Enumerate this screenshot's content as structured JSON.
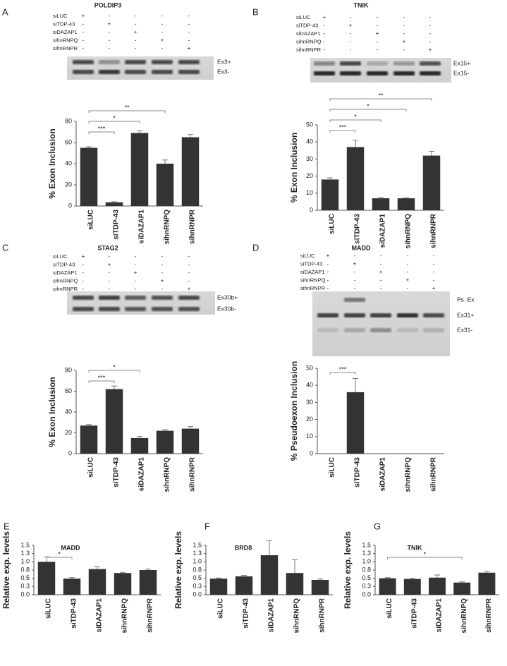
{
  "chart_data": [
    {
      "type": "bar",
      "panel": "A",
      "title": "POLDIP3",
      "gel": {
        "row_labels": [
          "siLUC",
          "siTDP-43",
          "siDAZAP1",
          "sihnRNPQ",
          "sihnRNPR"
        ],
        "rows": [
          [
            "+",
            "-",
            "-",
            "-",
            "-"
          ],
          [
            "-",
            "+",
            "-",
            "-",
            "-"
          ],
          [
            "-",
            "-",
            "+",
            "-",
            "-"
          ],
          [
            "-",
            "-",
            "-",
            "+",
            "-"
          ],
          [
            "-",
            "-",
            "-",
            "-",
            "+"
          ]
        ],
        "bands": [
          "Ex3+",
          "Ex3-"
        ]
      },
      "categories": [
        "siLUC",
        "siTDP-43",
        "siDAZAP1",
        "sihnRNPQ",
        "sihnRNPR"
      ],
      "values": [
        55,
        3.5,
        69,
        40,
        65
      ],
      "errors": [
        1,
        0.5,
        2,
        3.5,
        2.5
      ],
      "color": "#333333",
      "ylabel": "% Exon Inclusion",
      "ylim": [
        0,
        80
      ],
      "yticks": [
        0,
        20,
        40,
        60,
        80
      ],
      "significance": [
        {
          "label": "***",
          "between": [
            "siLUC",
            "siTDP-43"
          ]
        },
        {
          "label": "*",
          "between": [
            "siLUC",
            "siDAZAP1"
          ]
        },
        {
          "label": "**",
          "between": [
            "siLUC",
            "sihnRNPQ"
          ]
        }
      ]
    },
    {
      "type": "bar",
      "panel": "B",
      "title": "TNIK",
      "gel": {
        "row_labels": [
          "siLUC",
          "siTDP-43",
          "siDAZAP1",
          "sihnRNPQ",
          "sihnRNPR"
        ],
        "rows": [
          [
            "+",
            "-",
            "-",
            "-",
            "-"
          ],
          [
            "-",
            "+",
            "-",
            "-",
            "-"
          ],
          [
            "-",
            "-",
            "+",
            "-",
            "-"
          ],
          [
            "-",
            "-",
            "-",
            "+",
            "-"
          ],
          [
            "-",
            "-",
            "-",
            "-",
            "+"
          ]
        ],
        "bands": [
          "Ex15+",
          "Ex15-"
        ]
      },
      "categories": [
        "siLUC",
        "siTDP-43",
        "siDAZAP1",
        "sihnRNPQ",
        "sihnRNPR"
      ],
      "values": [
        18,
        37,
        7,
        7,
        32
      ],
      "errors": [
        1,
        4,
        0.5,
        0.3,
        2.5
      ],
      "color": "#333333",
      "ylabel": "% Exon Inclusion",
      "ylim": [
        0,
        50
      ],
      "yticks": [
        0,
        10,
        20,
        30,
        40,
        50
      ],
      "significance": [
        {
          "label": "***",
          "between": [
            "siLUC",
            "siTDP-43"
          ]
        },
        {
          "label": "*",
          "between": [
            "siLUC",
            "siDAZAP1"
          ]
        },
        {
          "label": "*",
          "between": [
            "siLUC",
            "sihnRNPQ"
          ]
        },
        {
          "label": "**",
          "between": [
            "siLUC",
            "sihnRNPR"
          ]
        }
      ]
    },
    {
      "type": "bar",
      "panel": "C",
      "title": "STAG2",
      "gel": {
        "row_labels": [
          "siLUC",
          "siTDP-43",
          "siDAZAP1",
          "sihnRNPQ",
          "sihnRNPR"
        ],
        "rows": [
          [
            "+",
            "-",
            "-",
            "-",
            "-"
          ],
          [
            "-",
            "+",
            "-",
            "-",
            "-"
          ],
          [
            "-",
            "-",
            "+",
            "-",
            "-"
          ],
          [
            "-",
            "-",
            "-",
            "+",
            "-"
          ],
          [
            "-",
            "-",
            "-",
            "-",
            "+"
          ]
        ],
        "bands": [
          "Ex30b+",
          "Ex30b-"
        ]
      },
      "categories": [
        "siLUC",
        "siTDP-43",
        "siDAZAP1",
        "sihnRNPQ",
        "sihnRNPR"
      ],
      "values": [
        27,
        62,
        15,
        22,
        24
      ],
      "errors": [
        1,
        3,
        1.5,
        1,
        2
      ],
      "color": "#333333",
      "ylabel": "% Exon Inclusion",
      "ylim": [
        0,
        80
      ],
      "yticks": [
        0,
        20,
        40,
        60,
        80
      ],
      "significance": [
        {
          "label": "***",
          "between": [
            "siLUC",
            "siTDP-43"
          ]
        },
        {
          "label": "*",
          "between": [
            "siLUC",
            "siDAZAP1"
          ]
        }
      ]
    },
    {
      "type": "bar",
      "panel": "D",
      "title": "MADD",
      "gel": {
        "row_labels": [
          "siLUC",
          "siTDP-43",
          "siDAZAP1",
          "sihnRNPQ",
          "sihnRNPR"
        ],
        "rows": [
          [
            "+",
            "-",
            "-",
            "-",
            "-"
          ],
          [
            "-",
            "+",
            "-",
            "-",
            "-"
          ],
          [
            "-",
            "-",
            "+",
            "-",
            "-"
          ],
          [
            "-",
            "-",
            "-",
            "+",
            "-"
          ],
          [
            "-",
            "-",
            "-",
            "-",
            "+"
          ]
        ],
        "bands": [
          "Ps. Ex",
          "Ex31+",
          "Ex31-"
        ]
      },
      "categories": [
        "siLUC",
        "siTDP-43",
        "siDAZAP1",
        "sihnRNPQ",
        "sihnRNPR"
      ],
      "values": [
        0,
        36,
        0,
        0,
        0
      ],
      "errors": [
        0,
        8,
        0,
        0,
        0
      ],
      "color": "#333333",
      "ylabel": "% Pseudoexon Inclusion",
      "ylim": [
        0,
        50
      ],
      "yticks": [
        0,
        10,
        20,
        30,
        40,
        50
      ],
      "significance": [
        {
          "label": "***",
          "between": [
            "siLUC",
            "siTDP-43"
          ]
        }
      ]
    },
    {
      "type": "bar",
      "panel": "E",
      "title": "MADD",
      "categories": [
        "siLUC",
        "siTDP-43",
        "siDAZAP1",
        "sihnRNPQ",
        "sihnRNPR"
      ],
      "values": [
        1.0,
        0.49,
        0.78,
        0.66,
        0.75
      ],
      "errors": [
        0.15,
        0.03,
        0.07,
        0.02,
        0.03
      ],
      "color": "#333333",
      "ylabel": "Relative exp. levels",
      "ylim": [
        0,
        1.5
      ],
      "yticks": [
        {
          "value": 0,
          "label": "0.0"
        },
        {
          "value": 0.25,
          "label": "0.3"
        },
        0.5,
        {
          "value": 0.75,
          "label": "0.8"
        },
        {
          "value": 1,
          "label": "1.0"
        },
        {
          "value": 1.25,
          "label": "1.3"
        },
        1.5
      ],
      "significance": [
        {
          "label": "*",
          "between": [
            "siLUC",
            "siTDP-43"
          ]
        }
      ]
    },
    {
      "type": "bar",
      "panel": "F",
      "title": "BRD8",
      "categories": [
        "siLUC",
        "siTDP-43",
        "siDAZAP1",
        "sihnRNPQ",
        "sihnRNPR"
      ],
      "values": [
        0.49,
        0.56,
        1.2,
        0.66,
        0.45
      ],
      "errors": [
        0.02,
        0.03,
        0.45,
        0.4,
        0.03
      ],
      "color": "#333333",
      "ylabel": "Relative exp. levels",
      "ylim": [
        0,
        1.5
      ],
      "yticks": [
        {
          "value": 0,
          "label": "0.0"
        },
        {
          "value": 0.25,
          "label": "0.3"
        },
        0.5,
        {
          "value": 0.75,
          "label": "0.8"
        },
        {
          "value": 1,
          "label": "1.0"
        },
        {
          "value": 1.25,
          "label": "1.3"
        },
        1.5
      ],
      "significance": []
    },
    {
      "type": "bar",
      "panel": "G",
      "title": "TNIK",
      "categories": [
        "siLUC",
        "siTDP-43",
        "siDAZAP1",
        "sihnRNPQ",
        "sihnRNPR"
      ],
      "values": [
        0.5,
        0.48,
        0.52,
        0.37,
        0.67
      ],
      "errors": [
        0.02,
        0.02,
        0.08,
        0.02,
        0.04
      ],
      "color": "#333333",
      "ylabel": "Relative exp. levels",
      "ylim": [
        0,
        1.5
      ],
      "yticks": [
        {
          "value": 0,
          "label": "0.0"
        },
        {
          "value": 0.25,
          "label": "0.3"
        },
        0.5,
        {
          "value": 0.75,
          "label": "0.8"
        },
        {
          "value": 1,
          "label": "1.0"
        },
        {
          "value": 1.25,
          "label": "1.3"
        },
        1.5
      ],
      "significance": [
        {
          "label": "*",
          "between": [
            "siLUC",
            "sihnRNPQ"
          ]
        }
      ]
    }
  ]
}
